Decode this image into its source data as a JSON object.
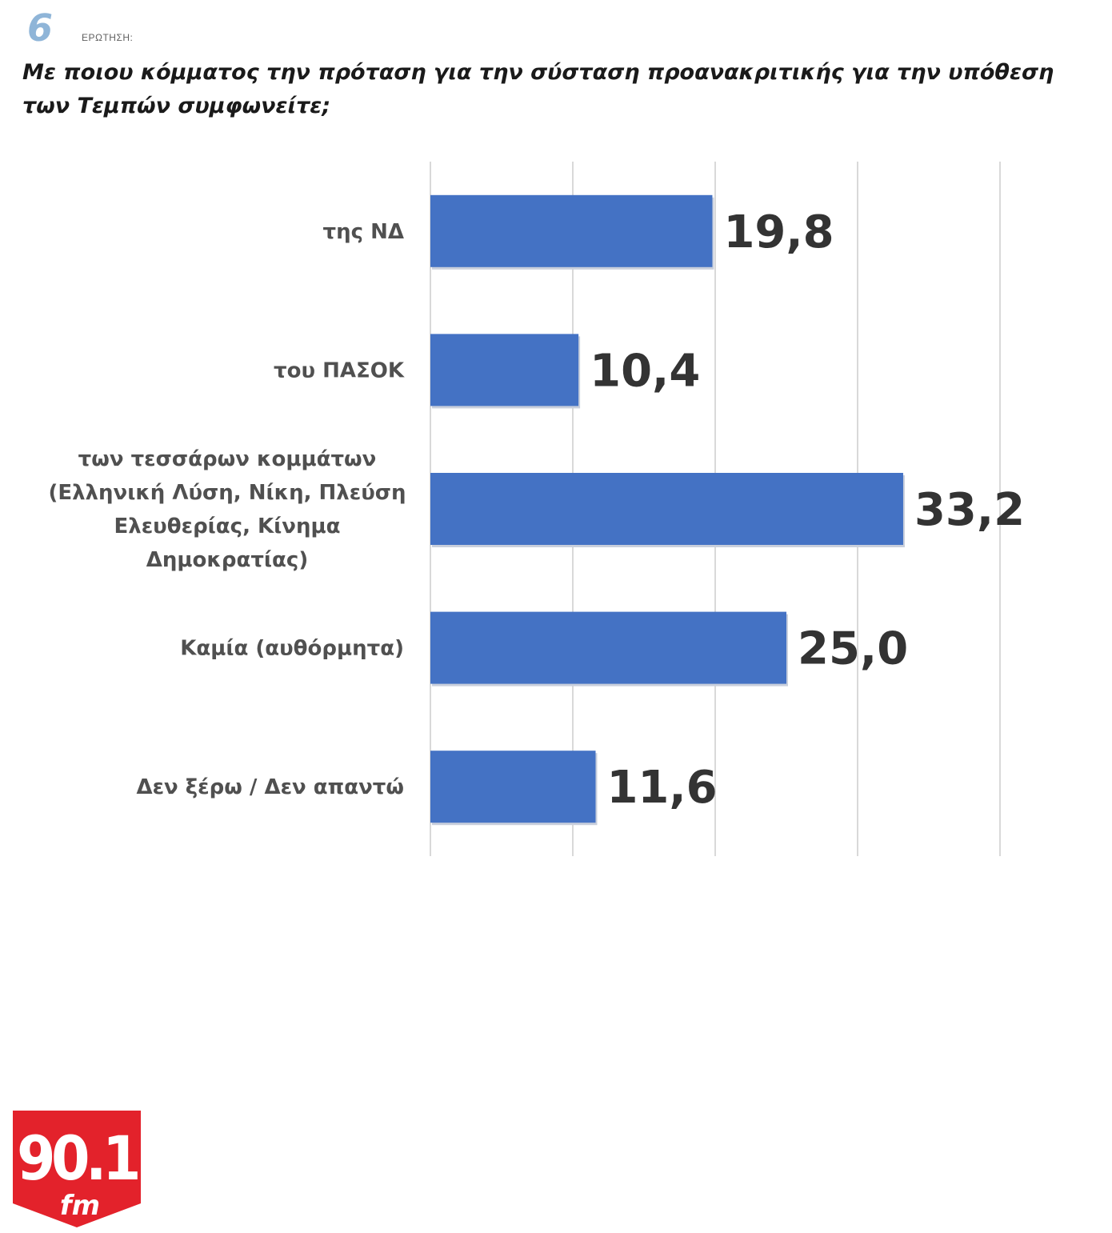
{
  "header": {
    "question_number": "6",
    "question_tag": "ΕΡΩΤΗΣΗ:",
    "question_text": "Με ποιου κόμματος την πρόταση για την σύσταση προανακριτικής για την υπόθεση των Τεμπών συμφωνείτε;"
  },
  "chart_data": {
    "type": "bar",
    "orientation": "horizontal",
    "categories": [
      [
        "της ΝΔ"
      ],
      [
        "του ΠΑΣΟΚ"
      ],
      [
        "των τεσσάρων κομμάτων",
        "(Ελληνική Λύση, Νίκη, Πλεύση",
        "Ελευθερίας, Κίνημα",
        "Δημοκρατίας)"
      ],
      [
        "Καμία (αυθόρμητα)"
      ],
      [
        "Δεν ξέρω / Δεν απαντώ"
      ]
    ],
    "values": [
      19.8,
      10.4,
      33.2,
      25.0,
      11.6
    ],
    "value_labels": [
      "19,8",
      "10,4",
      "33,2",
      "25,0",
      "11,6"
    ],
    "xlim": [
      0,
      40
    ],
    "grid": true,
    "bar_color": "#4472c4",
    "value_label_color": "#333333"
  },
  "logo": {
    "text_main": "90.1",
    "text_sub": "fm",
    "color": "#e3222b"
  }
}
